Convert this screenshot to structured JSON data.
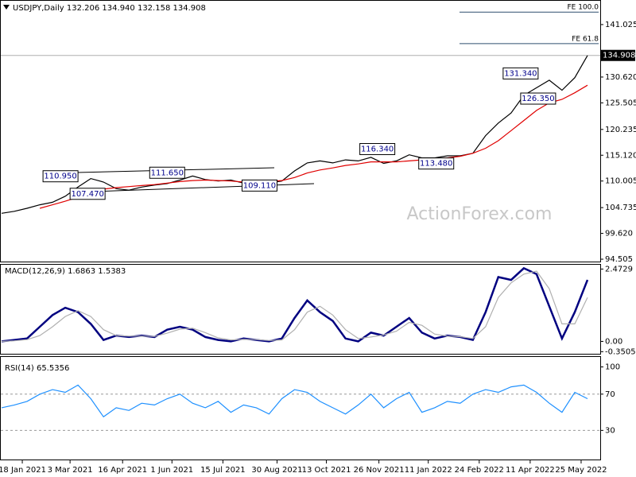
{
  "chart_data": [
    {
      "type": "line",
      "title": "USDJPY,Daily 132.206 134.940 132.158 134.908",
      "watermark": "ActionForex.com",
      "x": [
        0,
        8,
        16,
        24,
        32,
        40,
        48,
        56,
        64,
        72,
        80,
        88,
        96,
        104,
        112,
        120,
        128,
        136,
        144,
        152,
        160,
        168,
        176,
        184,
        192,
        200,
        208,
        216,
        224,
        232,
        240,
        248,
        256,
        264,
        272,
        280,
        288,
        296,
        304,
        312,
        320,
        328,
        336,
        344,
        352,
        360,
        368
      ],
      "xlim": [
        -1,
        376
      ],
      "ylim": [
        93.88,
        145.74
      ],
      "yticks": [
        {
          "value": 141.025,
          "label": "141.025"
        },
        {
          "value": 130.62,
          "label": "130.620"
        },
        {
          "value": 125.505,
          "label": "125.505"
        },
        {
          "value": 120.235,
          "label": "120.235"
        },
        {
          "value": 115.12,
          "label": "115.120"
        },
        {
          "value": 110.005,
          "label": "110.005"
        },
        {
          "value": 104.735,
          "label": "104.735"
        },
        {
          "value": 99.62,
          "label": "99.620"
        },
        {
          "value": 94.505,
          "label": "94.505"
        }
      ],
      "series": [
        {
          "name": "Close",
          "color": "#000000",
          "values": [
            103.6,
            104.0,
            104.6,
            105.3,
            105.8,
            107.0,
            108.8,
            110.5,
            109.8,
            108.5,
            108.2,
            108.8,
            109.2,
            109.5,
            110.2,
            111.0,
            110.3,
            110.0,
            110.2,
            109.6,
            110.0,
            109.6,
            110.0,
            112.0,
            113.6,
            114.0,
            113.6,
            114.2,
            114.0,
            114.7,
            113.5,
            114.0,
            115.2,
            114.6,
            114.6,
            115.0,
            115.0,
            115.5,
            119.0,
            121.5,
            123.5,
            127.0,
            128.5,
            130.0,
            128.0,
            130.5,
            134.9
          ]
        },
        {
          "name": "MA",
          "color": "#e00000",
          "values": [
            null,
            null,
            null,
            104.6,
            105.3,
            106.0,
            106.8,
            107.8,
            108.4,
            108.7,
            108.9,
            109.1,
            109.3,
            109.6,
            109.9,
            110.1,
            110.2,
            110.1,
            110.0,
            109.8,
            109.8,
            109.9,
            110.1,
            110.7,
            111.6,
            112.2,
            112.6,
            113.1,
            113.4,
            113.8,
            113.8,
            113.8,
            114.0,
            114.2,
            114.4,
            114.6,
            114.9,
            115.5,
            116.5,
            118.0,
            120.0,
            122.0,
            124.0,
            125.5,
            126.2,
            127.5,
            129.0
          ]
        }
      ],
      "last_price": {
        "value": 134.908,
        "label": "134.908"
      },
      "fe_levels": [
        {
          "value": 143.5,
          "label": "FE 100.0"
        },
        {
          "value": 137.25,
          "label": "FE 61.8"
        }
      ],
      "annotations": [
        {
          "x": 37,
          "value": 110.95,
          "label": "110.950"
        },
        {
          "x": 104,
          "value": 111.65,
          "label": "111.650"
        },
        {
          "x": 54,
          "value": 107.47,
          "label": "107.470"
        },
        {
          "x": 162,
          "value": 109.11,
          "label": "109.110"
        },
        {
          "x": 236,
          "value": 116.34,
          "label": "116.340"
        },
        {
          "x": 273,
          "value": 113.48,
          "label": "113.480"
        },
        {
          "x": 326,
          "value": 131.34,
          "label": "131.340"
        },
        {
          "x": 337,
          "value": 126.35,
          "label": "126.350"
        }
      ]
    },
    {
      "type": "line",
      "title": "MACD(12,26,9) 1.6863 1.5383",
      "x": [
        0,
        8,
        16,
        24,
        32,
        40,
        48,
        56,
        64,
        72,
        80,
        88,
        96,
        104,
        112,
        120,
        128,
        136,
        144,
        152,
        160,
        168,
        176,
        184,
        192,
        200,
        208,
        216,
        224,
        232,
        240,
        248,
        256,
        264,
        272,
        280,
        288,
        296,
        304,
        312,
        320,
        328,
        336,
        344,
        352,
        360,
        368
      ],
      "xlim": [
        -1,
        376
      ],
      "ylim": [
        -0.45,
        2.62
      ],
      "yticks": [
        2.4729,
        {
          "value": 0,
          "label": "0.00"
        },
        -0.3505
      ],
      "series": [
        {
          "name": "MACD",
          "color": "#000080",
          "values": [
            0.0,
            0.05,
            0.1,
            0.5,
            0.9,
            1.15,
            1.0,
            0.6,
            0.05,
            0.2,
            0.15,
            0.2,
            0.15,
            0.4,
            0.5,
            0.4,
            0.15,
            0.05,
            0.0,
            0.1,
            0.05,
            0.0,
            0.1,
            0.8,
            1.4,
            1.0,
            0.7,
            0.1,
            0.0,
            0.3,
            0.2,
            0.5,
            0.8,
            0.3,
            0.1,
            0.2,
            0.15,
            0.05,
            1.0,
            2.2,
            2.1,
            2.5,
            2.3,
            1.2,
            0.1,
            1.0,
            2.1
          ]
        },
        {
          "name": "Signal",
          "color": "#b0b0b0",
          "values": [
            0.0,
            0.02,
            0.06,
            0.2,
            0.5,
            0.85,
            1.05,
            0.85,
            0.4,
            0.2,
            0.18,
            0.18,
            0.17,
            0.28,
            0.42,
            0.45,
            0.3,
            0.12,
            0.05,
            0.07,
            0.06,
            0.03,
            0.05,
            0.4,
            1.0,
            1.2,
            0.9,
            0.4,
            0.1,
            0.15,
            0.22,
            0.35,
            0.65,
            0.55,
            0.25,
            0.18,
            0.16,
            0.1,
            0.5,
            1.5,
            2.0,
            2.3,
            2.4,
            1.8,
            0.6,
            0.6,
            1.5
          ]
        }
      ]
    },
    {
      "type": "line",
      "title": "RSI(14) 65.5356",
      "x": [
        0,
        8,
        16,
        24,
        32,
        40,
        48,
        56,
        64,
        72,
        80,
        88,
        96,
        104,
        112,
        120,
        128,
        136,
        144,
        152,
        160,
        168,
        176,
        184,
        192,
        200,
        208,
        216,
        224,
        232,
        240,
        248,
        256,
        264,
        272,
        280,
        288,
        296,
        304,
        312,
        320,
        328,
        336,
        344,
        352,
        360,
        368
      ],
      "xlim": [
        -1,
        376
      ],
      "ylim": [
        -3,
        111
      ],
      "yticks": [
        100,
        70,
        30
      ],
      "dashed_levels": [
        70,
        30
      ],
      "xticks": [
        {
          "value": 13,
          "label": "18 Jan 2021"
        },
        {
          "value": 43,
          "label": "3 Mar 2021"
        },
        {
          "value": 76,
          "label": "16 Apr 2021"
        },
        {
          "value": 107,
          "label": "1 Jun 2021"
        },
        {
          "value": 139,
          "label": "15 Jul 2021"
        },
        {
          "value": 173,
          "label": "30 Aug 2021"
        },
        {
          "value": 204,
          "label": "13 Oct 2021"
        },
        {
          "value": 237,
          "label": "26 Nov 2021"
        },
        {
          "value": 268,
          "label": "11 Jan 2022"
        },
        {
          "value": 300,
          "label": "24 Feb 2022"
        },
        {
          "value": 332,
          "label": "11 Apr 2022"
        },
        {
          "value": 364,
          "label": "25 May 2022"
        }
      ],
      "series": [
        {
          "name": "RSI",
          "color": "#1e90ff",
          "values": [
            55,
            58,
            62,
            70,
            75,
            72,
            80,
            65,
            45,
            55,
            52,
            60,
            58,
            65,
            70,
            60,
            55,
            62,
            50,
            58,
            55,
            48,
            65,
            75,
            72,
            62,
            55,
            48,
            58,
            70,
            55,
            65,
            72,
            50,
            55,
            62,
            60,
            70,
            75,
            72,
            78,
            80,
            72,
            60,
            50,
            72,
            65
          ]
        }
      ]
    }
  ]
}
